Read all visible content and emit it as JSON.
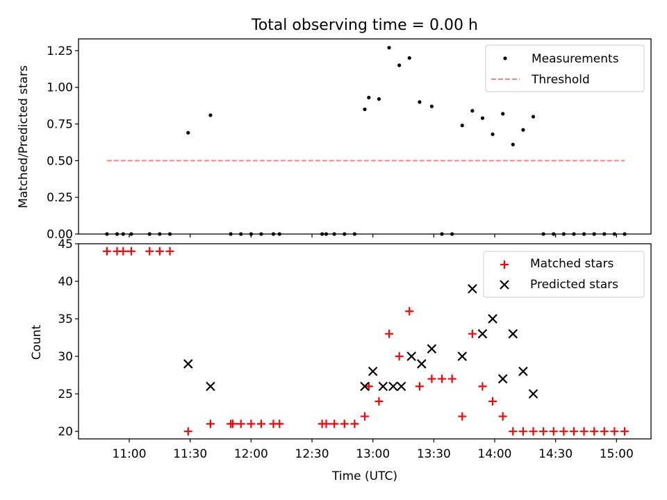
{
  "figure": {
    "title": "Total observing time = 0.00 h"
  },
  "chart_data": [
    {
      "type": "scatter",
      "xlabel": "",
      "ylabel": "Matched/Predicted stars",
      "xlim": [
        "10:35",
        "15:17"
      ],
      "ylim": [
        0,
        1.33
      ],
      "yticks": [
        "0.00",
        "0.25",
        "0.50",
        "0.75",
        "1.00",
        "1.25"
      ],
      "ytick_values": [
        0,
        0.25,
        0.5,
        0.75,
        1.0,
        1.25
      ],
      "grid": false,
      "legend_position": "top-right",
      "series": [
        {
          "name": "Measurements",
          "marker": "dot",
          "color": "#000000",
          "x": [
            "10:49",
            "10:54",
            "10:57",
            "11:01",
            "11:10",
            "11:15",
            "11:20",
            "11:29",
            "11:40",
            "11:50",
            "11:55",
            "12:00",
            "12:05",
            "12:11",
            "12:14",
            "12:35",
            "12:37",
            "12:41",
            "12:46",
            "12:51",
            "12:56",
            "12:58",
            "13:03",
            "13:08",
            "13:13",
            "13:18",
            "13:23",
            "13:29",
            "13:34",
            "13:39",
            "13:44",
            "13:49",
            "13:54",
            "13:59",
            "14:04",
            "14:09",
            "14:14",
            "14:19",
            "14:24",
            "14:29",
            "14:34",
            "14:39",
            "14:44",
            "14:49",
            "14:54",
            "14:59",
            "15:04"
          ],
          "y": [
            0,
            0,
            0,
            0,
            0,
            0,
            0,
            0.69,
            0.81,
            0,
            0,
            0,
            0,
            0,
            0,
            0,
            0,
            0,
            0,
            0,
            0.85,
            0.93,
            0.92,
            1.27,
            1.15,
            1.2,
            0.9,
            0.87,
            0,
            0,
            0.74,
            0.84,
            0.79,
            0.68,
            0.82,
            0.61,
            0.71,
            0.8,
            0,
            0,
            0,
            0,
            0,
            0,
            0,
            0,
            0
          ]
        },
        {
          "name": "Threshold",
          "style": "dashed",
          "color": "#ff7f7f",
          "x": [
            "10:49",
            "15:04"
          ],
          "y": [
            0.5,
            0.5
          ]
        }
      ]
    },
    {
      "type": "scatter",
      "xlabel": "Time (UTC)",
      "ylabel": "Count",
      "xlim": [
        "10:35",
        "15:17"
      ],
      "ylim": [
        19,
        45
      ],
      "yticks": [
        "20",
        "25",
        "30",
        "35",
        "40",
        "45"
      ],
      "ytick_values": [
        20,
        25,
        30,
        35,
        40,
        45
      ],
      "xticks": [
        "11:00",
        "11:30",
        "12:00",
        "12:30",
        "13:00",
        "13:30",
        "14:00",
        "14:30",
        "15:00"
      ],
      "xtick_values": [
        "11:00",
        "11:30",
        "12:00",
        "12:30",
        "13:00",
        "13:30",
        "14:00",
        "14:30",
        "15:00"
      ],
      "grid": false,
      "legend_position": "top-right",
      "series": [
        {
          "name": "Matched stars",
          "marker": "+",
          "color": "#ff0000",
          "x": [
            "10:49",
            "10:54",
            "10:57",
            "11:01",
            "11:10",
            "11:15",
            "11:20",
            "11:29",
            "11:40",
            "11:50",
            "11:51",
            "11:55",
            "12:00",
            "12:05",
            "12:11",
            "12:14",
            "12:35",
            "12:37",
            "12:41",
            "12:46",
            "12:51",
            "12:56",
            "12:58",
            "13:03",
            "13:08",
            "13:13",
            "13:18",
            "13:23",
            "13:29",
            "13:34",
            "13:39",
            "13:44",
            "13:49",
            "13:54",
            "13:59",
            "14:04",
            "14:09",
            "14:14",
            "14:19",
            "14:24",
            "14:29",
            "14:34",
            "14:39",
            "14:44",
            "14:49",
            "14:54",
            "14:59",
            "15:04"
          ],
          "y": [
            44,
            44,
            44,
            44,
            44,
            44,
            44,
            20,
            21,
            21,
            21,
            21,
            21,
            21,
            21,
            21,
            21,
            21,
            21,
            21,
            21,
            22,
            26,
            24,
            33,
            30,
            36,
            26,
            27,
            27,
            27,
            22,
            33,
            26,
            24,
            22,
            20,
            20,
            20,
            20,
            20,
            20,
            20,
            20,
            20,
            20,
            20,
            20
          ]
        },
        {
          "name": "Predicted stars",
          "marker": "x",
          "color": "#000000",
          "x": [
            "11:29",
            "11:40",
            "12:56",
            "13:00",
            "13:05",
            "13:10",
            "13:14",
            "13:19",
            "13:24",
            "13:29",
            "13:44",
            "13:49",
            "13:54",
            "13:59",
            "14:04",
            "14:09",
            "14:14",
            "14:19"
          ],
          "y": [
            29,
            26,
            26,
            28,
            26,
            26,
            26,
            30,
            29,
            31,
            30,
            39,
            33,
            35,
            27,
            33,
            28,
            25
          ]
        }
      ]
    }
  ]
}
